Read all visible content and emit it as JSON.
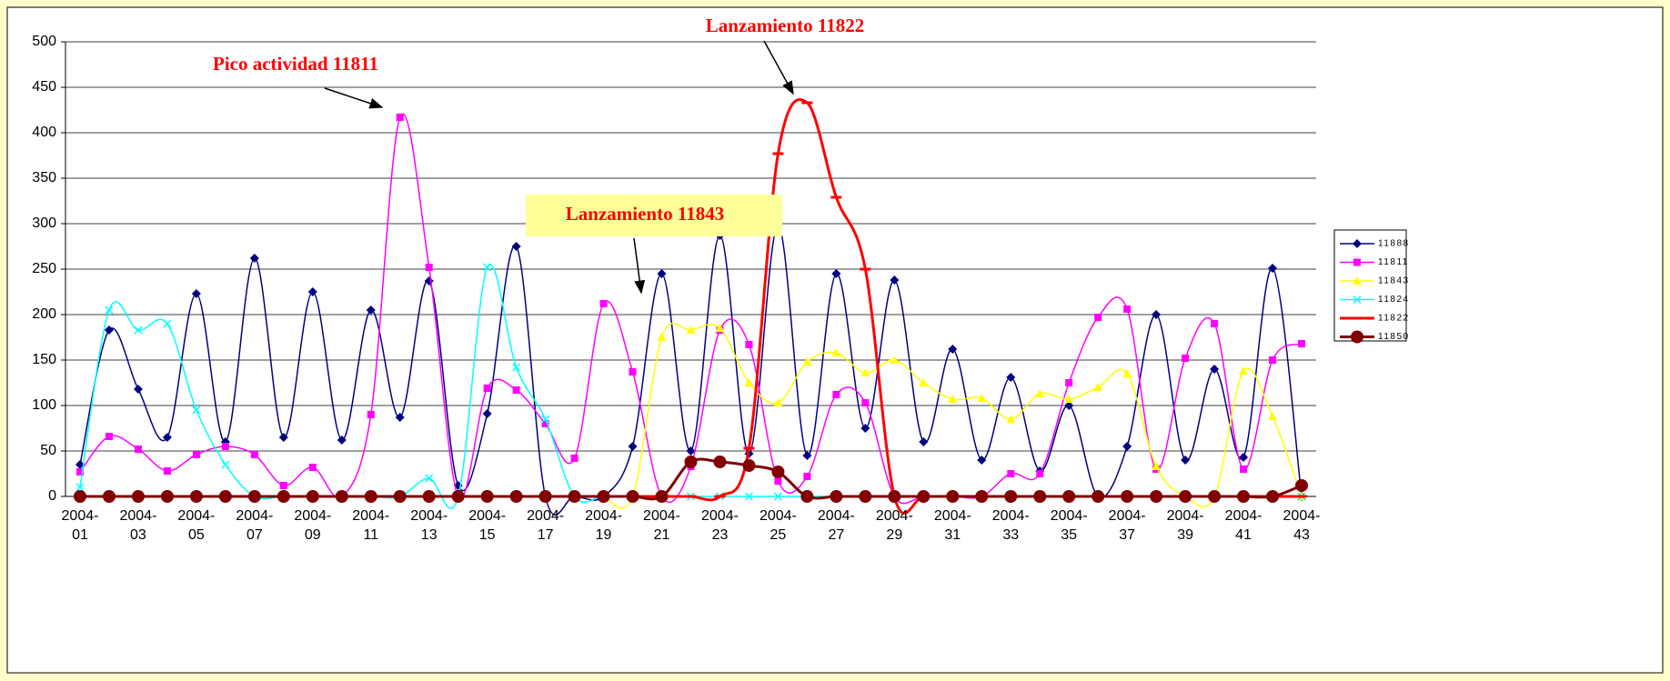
{
  "chart_data": {
    "type": "line",
    "annotations": [
      "Pico actividad 11811",
      "Lanzamiento 11822",
      "Lanzamiento 11843"
    ],
    "categories": [
      "2004-\n01",
      null,
      "2004-\n03",
      null,
      "2004-\n05",
      null,
      "2004-\n07",
      null,
      "2004-\n09",
      null,
      "2004-\n11",
      null,
      "2004-\n13",
      null,
      "2004-\n15",
      null,
      "2004-\n17",
      null,
      "2004-\n19",
      null,
      "2004-\n21",
      null,
      "2004-\n23",
      null,
      "2004-\n25",
      null,
      "2004-\n27",
      null,
      "2004-\n29",
      null,
      "2004-\n31",
      null,
      "2004-\n33",
      null,
      "2004-\n35",
      null,
      "2004-\n37",
      null,
      "2004-\n39",
      null,
      "2004-\n41",
      null,
      "2004-\n43"
    ],
    "series": [
      {
        "name": "11888",
        "color": "#000080",
        "marker": "diamond",
        "values": [
          35,
          183,
          118,
          65,
          223,
          60,
          262,
          65,
          225,
          62,
          205,
          87,
          237,
          12,
          91,
          275,
          0,
          0,
          0,
          55,
          245,
          50,
          287,
          47,
          298,
          45,
          245,
          75,
          238,
          60,
          162,
          40,
          131,
          28,
          100,
          0,
          55,
          200,
          40,
          140,
          43,
          251,
          0
        ]
      },
      {
        "name": "11811",
        "color": "#ff00ff",
        "marker": "square",
        "values": [
          27,
          66,
          52,
          28,
          46,
          55,
          46,
          12,
          32,
          0,
          90,
          417,
          252,
          0,
          119,
          117,
          80,
          42,
          212,
          137,
          0,
          33,
          183,
          167,
          17,
          22,
          112,
          103,
          0,
          0,
          0,
          0,
          25,
          25,
          125,
          197,
          206,
          30,
          152,
          190,
          30,
          150,
          168
        ]
      },
      {
        "name": "11843",
        "color": "#ffff00",
        "marker": "triangle",
        "values": [
          null,
          null,
          null,
          null,
          null,
          null,
          null,
          null,
          null,
          null,
          null,
          null,
          null,
          null,
          null,
          null,
          null,
          null,
          0,
          0,
          175,
          183,
          185,
          125,
          103,
          148,
          158,
          136,
          150,
          125,
          107,
          108,
          85,
          113,
          107,
          120,
          135,
          33,
          0,
          0,
          138,
          88,
          0
        ]
      },
      {
        "name": "11824",
        "color": "#00ffff",
        "marker": "cross",
        "values": [
          10,
          205,
          183,
          190,
          95,
          35,
          0,
          0,
          0,
          0,
          0,
          0,
          20,
          0,
          252,
          142,
          85,
          0,
          0,
          0,
          0,
          0,
          0,
          0,
          0,
          0,
          0,
          0,
          0,
          0,
          0,
          0,
          0,
          0,
          0,
          0,
          0,
          0,
          0,
          0,
          0,
          0,
          0
        ]
      },
      {
        "name": "11822",
        "color": "#ff0000",
        "marker": "dash",
        "values": [
          0,
          0,
          0,
          0,
          0,
          0,
          0,
          0,
          0,
          0,
          0,
          0,
          0,
          0,
          0,
          0,
          0,
          0,
          0,
          0,
          0,
          0,
          0,
          53,
          377,
          433,
          329,
          250,
          0,
          0,
          0,
          0,
          0,
          0,
          0,
          0,
          0,
          0,
          0,
          0,
          0,
          0,
          0
        ]
      },
      {
        "name": "11850",
        "color": "#800000",
        "marker": "circle",
        "values": [
          0,
          0,
          0,
          0,
          0,
          0,
          0,
          0,
          0,
          0,
          0,
          0,
          0,
          0,
          0,
          0,
          0,
          0,
          0,
          0,
          0,
          38,
          38,
          34,
          27,
          0,
          0,
          0,
          0,
          0,
          0,
          0,
          0,
          0,
          0,
          0,
          0,
          0,
          0,
          0,
          0,
          0,
          12
        ]
      }
    ],
    "ylim": [
      0,
      500
    ],
    "yticks": [
      0,
      50,
      100,
      150,
      200,
      250,
      300,
      350,
      400,
      450,
      500
    ],
    "grid": true
  }
}
